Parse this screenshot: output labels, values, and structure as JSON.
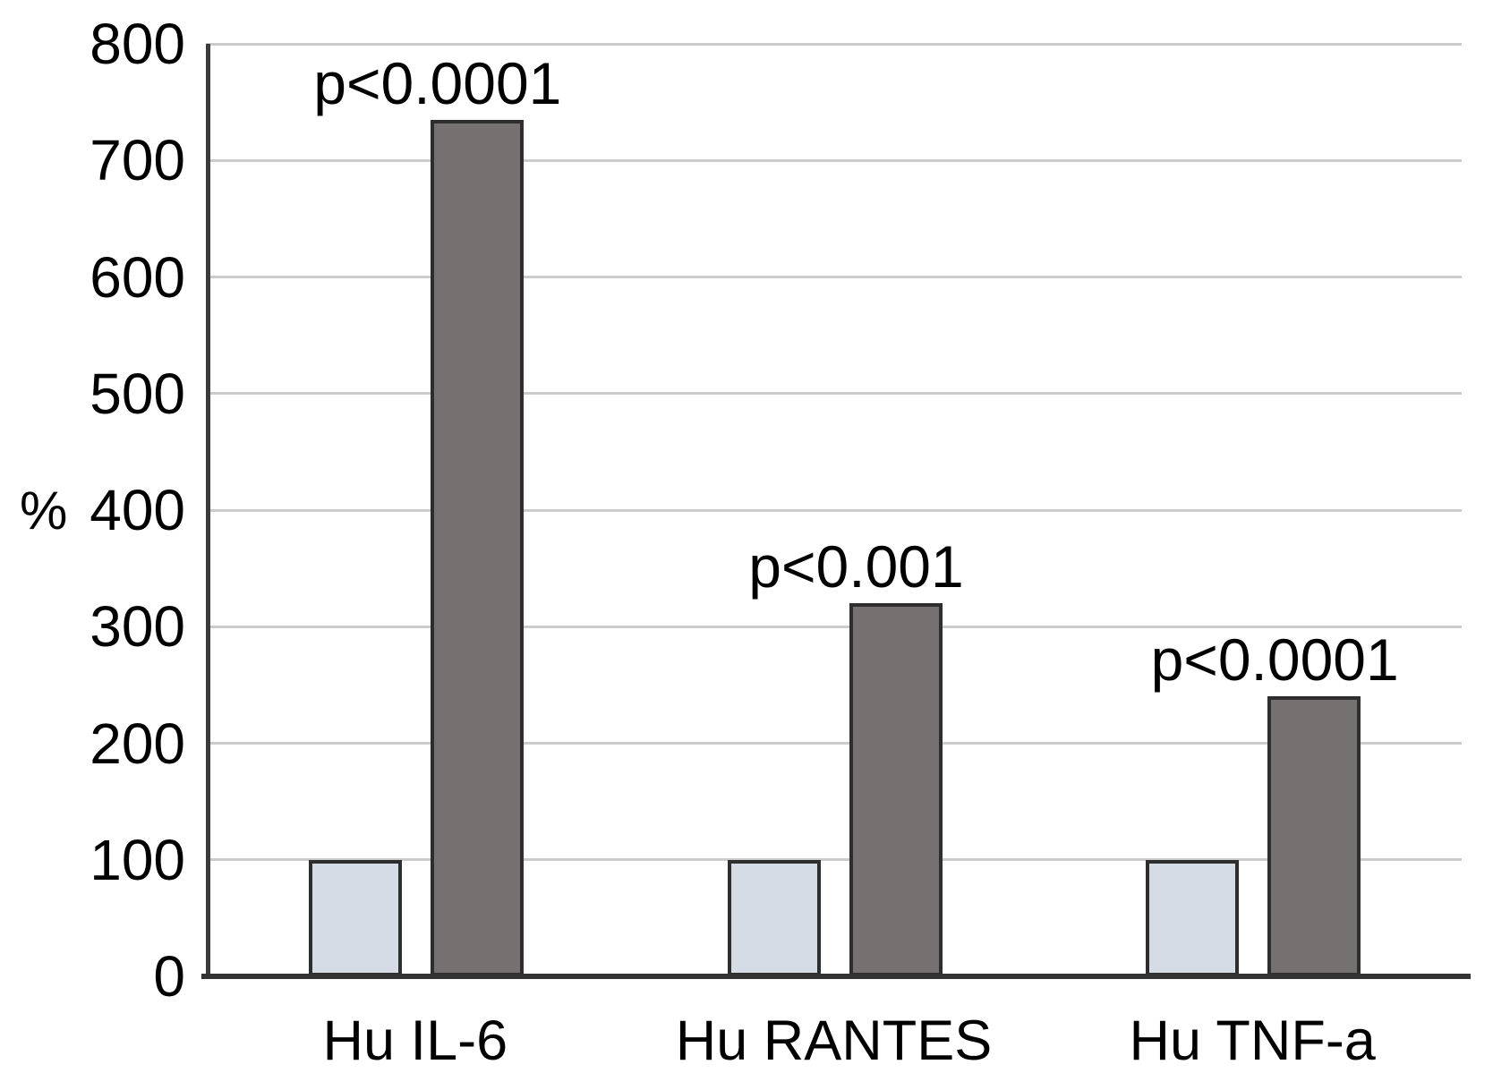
{
  "chart_data": {
    "type": "bar",
    "title": "",
    "xlabel": "",
    "ylabel": "%",
    "ylim": [
      0,
      800
    ],
    "yticks": [
      0,
      100,
      200,
      300,
      400,
      500,
      600,
      700,
      800
    ],
    "grid": true,
    "legend": "none",
    "categories": [
      "Hu IL-6",
      "Hu RANTES",
      "Hu TNF-a"
    ],
    "series": [
      {
        "name": "control-light-bar",
        "color": "#d5dce6",
        "values": [
          100,
          100,
          100
        ]
      },
      {
        "name": "stimulated-dark-bar",
        "color": "#747170",
        "values": [
          735,
          320,
          240
        ]
      }
    ],
    "annotations": [
      {
        "category": "Hu IL-6",
        "text": "p<0.0001"
      },
      {
        "category": "Hu RANTES",
        "text": "p<0.001"
      },
      {
        "category": "Hu TNF-a",
        "text": "p<0.0001"
      }
    ],
    "colors": {
      "background": "#ffffff",
      "gridline": "#cbcbcb",
      "axis": "#3b3b3b",
      "bar_border": "#2e2e2e",
      "text": "#000000"
    }
  }
}
